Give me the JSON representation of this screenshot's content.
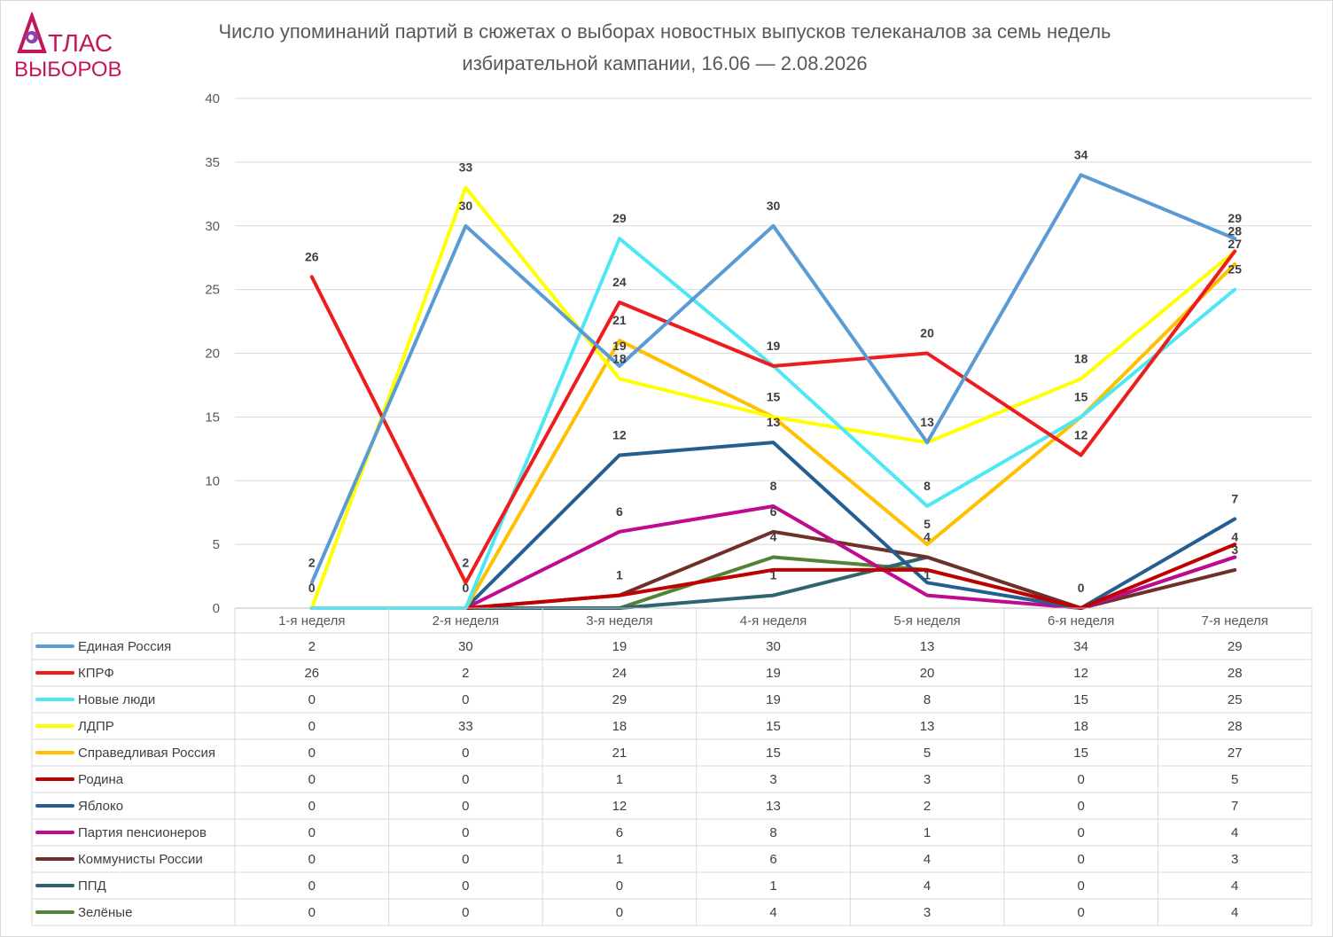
{
  "logo": {
    "line1": "ТЛАС",
    "line2": "ВЫБОРОВ",
    "color": "#c2185b"
  },
  "title": "Число упоминаний партий в сюжетах о выборах новостных выпусков телеканалов за семь недель избирательной кампании, 16.06 — 2.08.2026",
  "chart_data": {
    "type": "line",
    "title": "Число упоминаний партий в сюжетах о выборах новостных выпусков телеканалов за семь недель избирательной кампании, 16.06 — 2.08.2026",
    "categories": [
      "1-я неделя",
      "2-я неделя",
      "3-я неделя",
      "4-я неделя",
      "5-я неделя",
      "6-я неделя",
      "7-я неделя"
    ],
    "ylim": [
      0,
      40
    ],
    "yticks": [
      0,
      5,
      10,
      15,
      20,
      25,
      30,
      35,
      40
    ],
    "grid": true,
    "legend": "data-table",
    "series": [
      {
        "name": "Единая Россия",
        "color": "#5b9bd5",
        "values": [
          2,
          30,
          19,
          30,
          13,
          34,
          29
        ]
      },
      {
        "name": "КПРФ",
        "color": "#ee1c1c",
        "values": [
          26,
          2,
          24,
          19,
          20,
          12,
          28
        ]
      },
      {
        "name": "Новые люди",
        "color": "#4de8f4",
        "values": [
          0,
          0,
          29,
          19,
          8,
          15,
          25
        ]
      },
      {
        "name": "ЛДПР",
        "color": "#ffff00",
        "values": [
          0,
          33,
          18,
          15,
          13,
          18,
          28
        ]
      },
      {
        "name": "Справедливая Россия",
        "color": "#ffc000",
        "values": [
          0,
          0,
          21,
          15,
          5,
          15,
          27
        ]
      },
      {
        "name": "Родина",
        "color": "#c00000",
        "values": [
          0,
          0,
          1,
          3,
          3,
          0,
          5
        ]
      },
      {
        "name": "Яблоко",
        "color": "#255e91",
        "values": [
          0,
          0,
          12,
          13,
          2,
          0,
          7
        ]
      },
      {
        "name": "Партия пенсионеров",
        "color": "#c00a8f",
        "values": [
          0,
          0,
          6,
          8,
          1,
          0,
          4
        ]
      },
      {
        "name": "Коммунисты России",
        "color": "#70302a",
        "values": [
          0,
          0,
          1,
          6,
          4,
          0,
          3
        ]
      },
      {
        "name": "ППД",
        "color": "#2e6470",
        "values": [
          0,
          0,
          0,
          1,
          4,
          0,
          4
        ]
      },
      {
        "name": "Зелёные",
        "color": "#548235",
        "values": [
          0,
          0,
          0,
          4,
          3,
          0,
          4
        ]
      }
    ],
    "data_labels": [
      {
        "text": "2",
        "week": 1,
        "value": 2
      },
      {
        "text": "0",
        "week": 1,
        "value": 0
      },
      {
        "text": "26",
        "week": 1,
        "value": 26
      },
      {
        "text": "33",
        "week": 2,
        "value": 33
      },
      {
        "text": "30",
        "week": 2,
        "value": 30
      },
      {
        "text": "2",
        "week": 2,
        "value": 2
      },
      {
        "text": "0",
        "week": 2,
        "value": 0
      },
      {
        "text": "29",
        "week": 3,
        "value": 29
      },
      {
        "text": "24",
        "week": 3,
        "value": 24
      },
      {
        "text": "21",
        "week": 3,
        "value": 21
      },
      {
        "text": "19",
        "week": 3,
        "value": 19
      },
      {
        "text": "18",
        "week": 3,
        "value": 18
      },
      {
        "text": "12",
        "week": 3,
        "value": 12
      },
      {
        "text": "6",
        "week": 3,
        "value": 6
      },
      {
        "text": "1",
        "week": 3,
        "value": 1
      },
      {
        "text": "30",
        "week": 4,
        "value": 30
      },
      {
        "text": "19",
        "week": 4,
        "value": 19
      },
      {
        "text": "15",
        "week": 4,
        "value": 15
      },
      {
        "text": "13",
        "week": 4,
        "value": 13
      },
      {
        "text": "8",
        "week": 4,
        "value": 8
      },
      {
        "text": "6",
        "week": 4,
        "value": 6
      },
      {
        "text": "4",
        "week": 4,
        "value": 4
      },
      {
        "text": "1",
        "week": 4,
        "value": 1
      },
      {
        "text": "20",
        "week": 5,
        "value": 20
      },
      {
        "text": "13",
        "week": 5,
        "value": 13
      },
      {
        "text": "8",
        "week": 5,
        "value": 8
      },
      {
        "text": "5",
        "week": 5,
        "value": 5
      },
      {
        "text": "4",
        "week": 5,
        "value": 4
      },
      {
        "text": "1",
        "week": 5,
        "value": 1
      },
      {
        "text": "34",
        "week": 6,
        "value": 34
      },
      {
        "text": "18",
        "week": 6,
        "value": 18
      },
      {
        "text": "15",
        "week": 6,
        "value": 15
      },
      {
        "text": "12",
        "week": 6,
        "value": 12
      },
      {
        "text": "0",
        "week": 6,
        "value": 0
      },
      {
        "text": "29",
        "week": 7,
        "value": 29
      },
      {
        "text": "28",
        "week": 7,
        "value": 28
      },
      {
        "text": "27",
        "week": 7,
        "value": 27
      },
      {
        "text": "25",
        "week": 7,
        "value": 25
      },
      {
        "text": "7",
        "week": 7,
        "value": 7
      },
      {
        "text": "4",
        "week": 7,
        "value": 4
      },
      {
        "text": "3",
        "week": 7,
        "value": 3
      }
    ]
  }
}
